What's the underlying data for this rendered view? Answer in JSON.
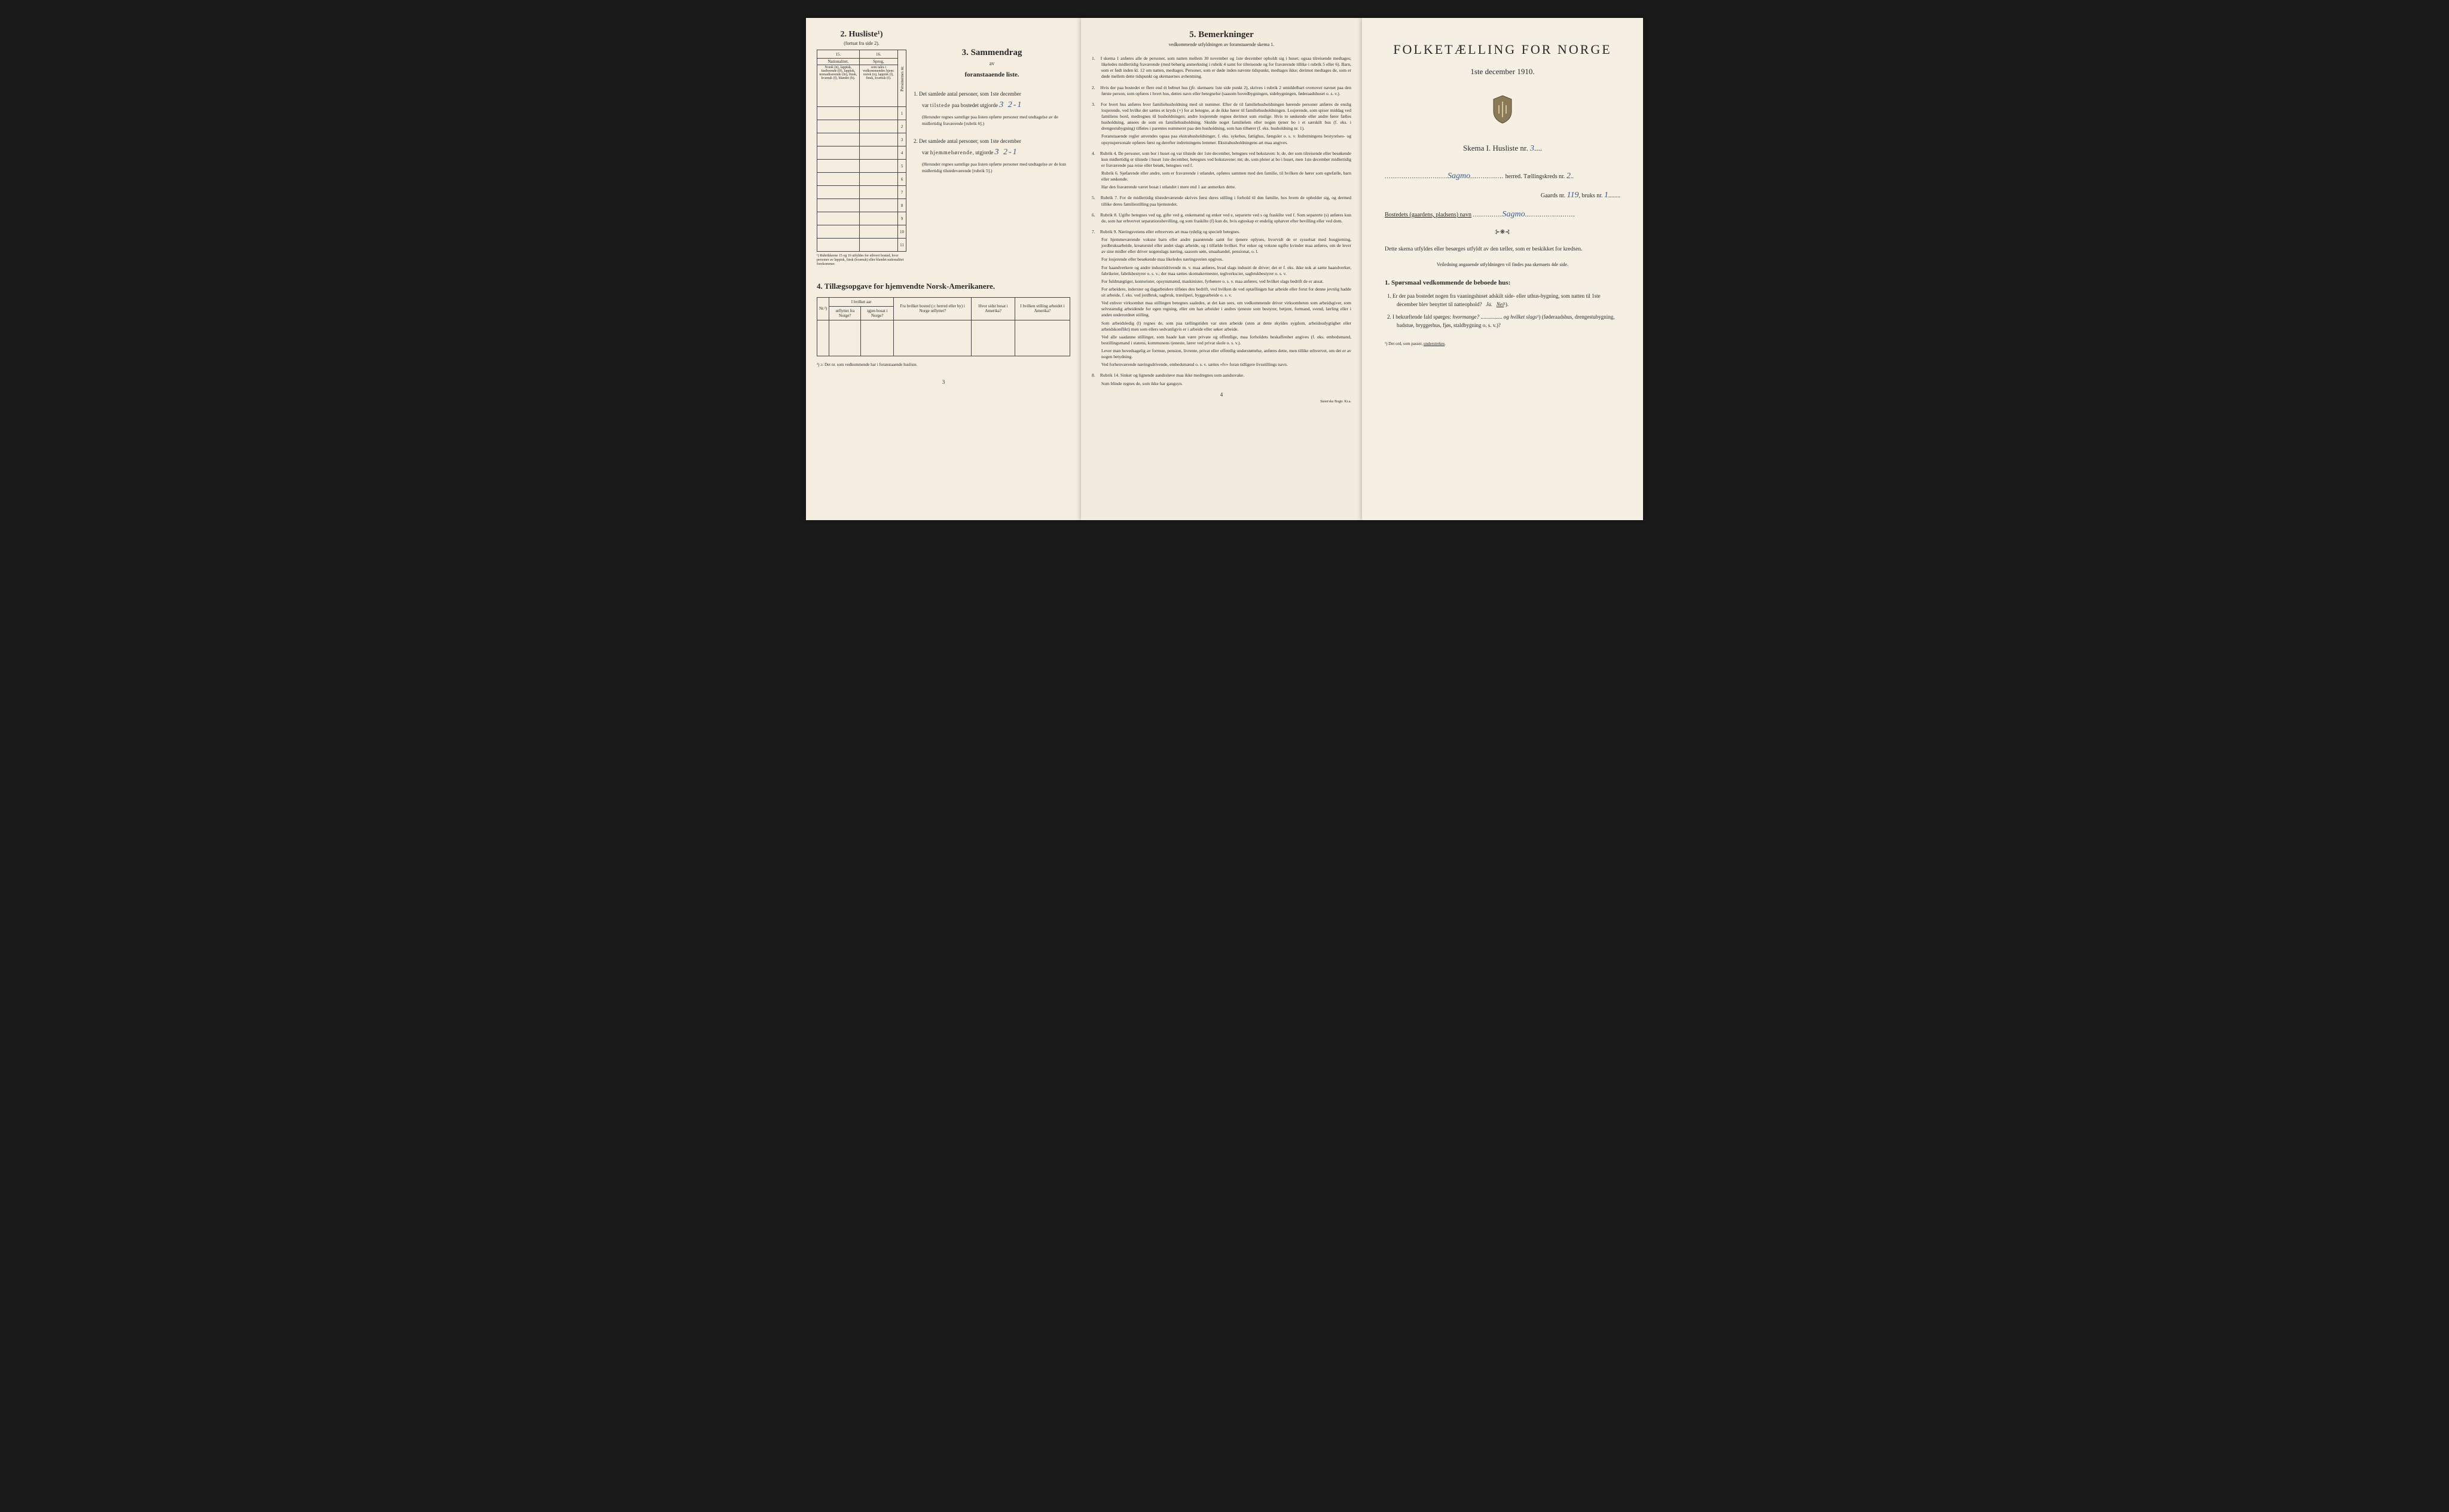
{
  "page1": {
    "husliste": {
      "title": "2. Husliste¹)",
      "sub": "(fortsat fra side 2)."
    },
    "tab1": {
      "cols": [
        "15.",
        "16."
      ],
      "h1": "Nationalitet.",
      "h2": "Sprog,",
      "d1": "Norsk (n), lappisk, fastboende (lf), lappisk, nomadiserende (ln), finsk, kvænsk (f), blandet (b).",
      "d2": "som tales i vedkommendes hjem: norsk (n), lappisk (l), finsk, kvænsk (f).",
      "side": "Personernes nr.",
      "rows": [
        "1",
        "2",
        "3",
        "4",
        "5",
        "6",
        "7",
        "8",
        "9",
        "10",
        "11"
      ]
    },
    "tabfoot": "¹) Rubrikkerne 15 og 16 utfyldes for ethvert bosted, hvor personer av lappisk, finsk (kvænsk) eller blandet nationalitet forekommer.",
    "sec3": {
      "title": "3. Sammendrag",
      "sub1": "av",
      "sub2": "foranstaaende liste.",
      "item1_a": "1. Det samlede antal personer, som 1ste december",
      "item1_b": "var tilstede paa bostedet utgjorde",
      "item1_hand": "3 2-1",
      "item1_note": "(Herunder regnes samtlige paa listen opførte personer med undtagelse av de midlertidig fraværende [rubrik 6].)",
      "item2_a": "2. Det samlede antal personer, som 1ste december",
      "item2_b": "var hjemmehørende, utgjorde",
      "item2_hand": "3 2-1",
      "item2_note": "(Herunder regnes samtlige paa listen opførte personer med undtagelse av de kun midlertidig tilstedeværende [rubrik 5].)"
    },
    "sec4": {
      "title": "4. Tillægsopgave for hjemvendte Norsk-Amerikanere.",
      "headers": [
        "Nr.²)",
        "I hvilket aar",
        "Fra hvilket bosted (ɔ: herred eller by) i Norge utflyttet?",
        "Hvor sidst bosat i Amerika?",
        "I hvilken stilling arbeidet i Amerika?"
      ],
      "sub": [
        "",
        "utflyttet fra Norge?",
        "igjen bosat i Norge?",
        "",
        "",
        ""
      ]
    },
    "foot": "²) ɔ: Det nr. som vedkommende har i foranstaaende husliste.",
    "pagenum": "3"
  },
  "page2": {
    "title": "5. Bemerkninger",
    "sub": "vedkommende utfyldningen av foranstaaende skema 1.",
    "remarks": [
      "I skema 1 anføres alle de personer, som natten mellem 30 november og 1ste december opholdt sig i huset; ogsaa tilreisende medtages; likeledes midlertidig fraværende (med behørig anmerkning i rubrik 4 samt for tilreisende og for fraværende tillike i rubrik 5 eller 6). Barn, som er født inden kl. 12 om natten, medtages. Personer, som er døde inden nævnte tidspunkt, medtages ikke; derimot medtages de, som er døde mellem dette tidspunkt og skemaernes avhentning.",
      "Hvis der paa bostedet er flere end ét beboet hus (jfr. skemaets 1ste side punkt 2), skrives i rubrik 2 umiddelbart ovenover navnet paa den første person, som opføres i hvert hus, dettes navn eller betegnelse (saasom hovedbygningen, sidebygningen, føderaadshuset o. s. v.).",
      "For hvert hus anføres hver familiehusholdning med sit nummer. Efter de til familiehusholdningen hørende personer anføres de enslig losjerende, ved hvilke der sættes et kryds (×) for at betegne, at de ikke hører til familiehusholdningen. Losjerende, som spiser middag ved familiens bord, medregnes til husholdningen; andre losjerende regnes derimot som enslige. Hvis to søskende eller andre fører fælles husholdning, ansees de som en familiehusholdning. Skulde noget familielem eller nogen tjener bo i et særskilt hus (f. eks. i drengestubygning) tilføies i parentes nummeret paa den husholdning, som han tilhører (f. eks. husholdning nr. 1).\nForanstaaende regler anvendes ogsaa paa ekstrahusholdninger, f. eks. sykehus, fattighus, fængsler o. s. v. Indretningens bestyrelses- og opsynspersonale opføres først og derefter indretningens lemmer. Ekstrahusholdningens art maa angives.",
      "Rubrik 4. De personer, som bor i huset og var tilstede der 1ste december, betegnes ved bokstaven: b; de, der som tilreisende eller besøkende kun midlertidig er tilstede i huset 1ste december, betegnes ved bokstavene: mt; de, som pleier at bo i huset, men 1ste december midlertidig er fraværende paa reise eller besøk, betegnes ved f.\nRubrik 6. Sjøfarende eller andre, som er fraværende i utlandet, opføres sammen med den familie, til hvilken de hører som egtefælle, barn eller søskende.\nHar den fraværende været bosat i utlandet i mere end 1 aar anmerkes dette.",
      "Rubrik 7. For de midlertidig tilstedeværende skrives først deres stilling i forhold til den familie, hos hvem de opholder sig, og dermed tillike deres familiestilling paa hjemstedet.",
      "Rubrik 8. Ugifte betegnes ved ug, gifte ved g, enkemænd og enker ved e, separerte ved s og fraskilte ved f. Som separerte (s) anføres kun de, som har erhvervet separationsbevilling, og som fraskilte (f) kun de, hvis egteskap er endelig ophævet efter bevilling eller ved dom.",
      "Rubrik 9. Næringsveiens eller erhvervets art maa tydelig og specielt betegnes.\nFor hjemmeværende voksne barn eller andre paarørende samt for tjenere oplyses, hvorvidt de er sysselsat med husgjerning, jordbruksarbeide, kreaturstel eller andet slags arbeide, og i tilfælde hvilket. For enker og voksne ugifte kvinder maa anføres, om de lever av sine midler eller driver nogenslags næring, saasom søm, smaahandel, pensionat, o. l.\nFor losjerende eller besøkende maa likeledes næringsveien opgives.\nFor haandverkere og andre industridrivende m. v. maa anføres, hvad slags industri de driver; det er f. eks. ikke nok at sætte haandverker, fabrikeier, fabrikbestyrer o. s. v.; der maa sættes skomakermester, teglverkscier, sagbrukbestyrer o. s. v.\nFor fuldmægtiger, kontorister, opsynsmænd, maskinister, fyrbøtere o. s. v. maa anføres, ved hvilket slags bedrift de er ansat.\nFor arbeidere, inderster og dagarbeidere tilføies den bedrift, ved hvilken de ved optællingen har arbeide eller forut for denne jevnlig hadde sit arbeide, f. eks. ved jordbruk, sagbruk, træsliperi, byggearbeide o. s. v.\nVed enhver virksomhet maa stillingen betegnes saaledes, at det kan sees, om vedkommende driver virksomheten som arbeidsgiver, som selvstændig arbeidende for egen regning, eller om han arbeider i andres tjeneste som bestyrer, betjent, formand, svend, lærling eller i anden underordnet stilling.\nSom arbeidsledig (l) regnes de, som paa tællingstiden var uten arbeide (uten at dette skyldes sygdom, arbeidsudygtighet eller arbeidskonflikt) men som ellers sedvanligvis er i arbeide eller søker arbeide.\nVed alle saadanne stillinger, som baade kan være private og offentlige, maa forholdets beskaffenhet angives (f. eks. embedsmand, bestillingsmand i statens, kommunens tjeneste, lærer ved privat skole o. s. v.).\nLever man hovedsagelig av formue, pension, livrente, privat eller offentlig understøttelse, anføres dette, men tillike erhvervet, om det er av nogen betydning.\nVed forhenværende næringsdrivende, embedsmænd o. s. v. sættes «fv» foran tidligere livsstillings navn.",
      "Rubrik 14. Sinker og lignende aandssløve maa ikke medregnes som aandssvake.\nSom blinde regnes de, som ikke har gangsyn."
    ],
    "pagenum": "4",
    "printer": "Steen'ske Bogtr. Kr.a."
  },
  "page3": {
    "title": "FOLKETÆLLING FOR NORGE",
    "date": "1ste december 1910.",
    "skema": "Skema I.  Husliste nr.",
    "skema_hand": "3",
    "herred_hand": "Sagmo",
    "herred_label": "herred.   Tællingskreds nr.",
    "kreds_hand": "2",
    "gaard_label": "Gaards nr.",
    "gaard_hand": "119",
    "bruks_label": ", bruks nr.",
    "bruks_hand": "1",
    "bosted_label": "Bostedets (gaardens, pladsens) navn",
    "bosted_hand": "Sagmo",
    "intro": "Dette skema utfyldes eller besørges utfyldt av den tæller, som er beskikket for kredsen.",
    "intro_sub": "Veiledning angaaende utfyldningen vil findes paa skemaets 4de side.",
    "q_head": "1. Spørsmaal vedkommende de beboede hus:",
    "q1": "1. Er der paa bostedet nogen fra vaaningshuset adskilt side- eller uthus-bygning, som natten til 1ste december blev benyttet til natteophold?   Ja.   Nei¹).",
    "q2": "2. I bekræftende fald spørges: hvormange? ............ og hvilket slags¹) (føderaadshus, drengestubygning, badstue, bryggerhus, fjøs, staldbygning o. s. v.)?",
    "foot": "¹) Det ord, som passer, understrekes."
  }
}
